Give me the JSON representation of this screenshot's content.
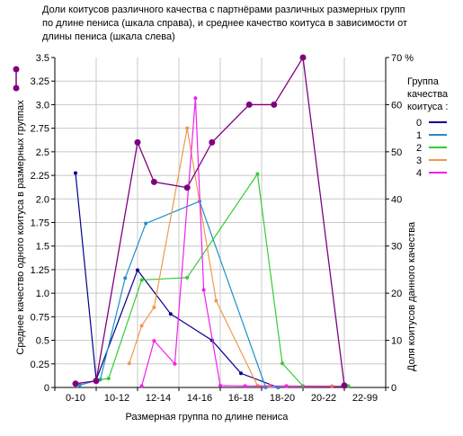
{
  "chart_data": {
    "type": "line",
    "title": "Доли коитусов различного качества с партнёрами различных размерных групп по длине пениса (шкала справа), и среднее качество коитуса в зависимости от длины пениса (шкала слева)",
    "title_lines": [
      "Доли коитусов различного качества с партнёрами различных размерных групп",
      "по длине пениса (шкала справа), и среднее качество коитуса в зависимости от",
      "длины пениса (шкала слева)"
    ],
    "xlabel": "Размерная группа  по длине пениса",
    "ylabel_left": "Среднее качество одного коитуса в размерных группах",
    "ylabel_right": "Доля коитусов данного качества",
    "categories": [
      "0-10",
      "10-12",
      "12-14",
      "14-16",
      "16-18",
      "18-20",
      "20-22",
      "22-99"
    ],
    "ylim_left": [
      0,
      3.5
    ],
    "yticks_left": [
      "0",
      "0.25",
      "0.5",
      "0.75",
      "1.0",
      "1.25",
      "1.5",
      "1.75",
      "2.0",
      "2.25",
      "2.5",
      "2.75",
      "3.0",
      "3.25",
      "3.5"
    ],
    "ylim_right": [
      0,
      70
    ],
    "yticks_right": [
      "0",
      "10",
      "20",
      "30",
      "40",
      "50",
      "60",
      "70 %"
    ],
    "legend": {
      "title_lines": [
        "Группа",
        "качества",
        "коитуса :"
      ],
      "position": "right"
    },
    "grid": true,
    "mean_series": {
      "axis": "left",
      "color": "#800080",
      "x": [
        0,
        0.5,
        1.5,
        1.9,
        2.7,
        3.3,
        4.2,
        4.8,
        5.5,
        6.5
      ],
      "y": [
        0.04,
        0.07,
        2.6,
        2.18,
        2.12,
        2.6,
        3.0,
        3.0,
        3.5,
        0.02
      ]
    },
    "series": [
      {
        "name": "0",
        "color": "#00008b",
        "axis": "right",
        "x": [
          0,
          0.5,
          1.5,
          2.3,
          3.3,
          4.0,
          4.9
        ],
        "y": [
          45.5,
          1.6,
          24.9,
          15.6,
          10.0,
          3.0,
          0.0
        ]
      },
      {
        "name": "1",
        "color": "#1e90c8",
        "axis": "right",
        "x": [
          0.1,
          0.6,
          1.2,
          1.7,
          3.0,
          4.6,
          4.9
        ],
        "y": [
          0.5,
          1.7,
          23.2,
          34.8,
          39.5,
          0.0,
          0.0
        ]
      },
      {
        "name": "2",
        "color": "#32cd32",
        "axis": "right",
        "x": [
          0.5,
          0.8,
          1.6,
          2.7,
          4.4,
          5.0,
          5.5,
          6.6
        ],
        "y": [
          1.6,
          1.9,
          22.8,
          23.3,
          45.3,
          5.1,
          0.3,
          0.3
        ]
      },
      {
        "name": "3",
        "color": "#ee9a4d",
        "axis": "right",
        "x": [
          1.3,
          1.6,
          1.9,
          2.7,
          3.4,
          4.4,
          4.7,
          5.1,
          6.2
        ],
        "y": [
          5.1,
          13.1,
          17.0,
          55.0,
          18.4,
          0.4,
          0.3,
          0.3,
          0.3
        ]
      },
      {
        "name": "4",
        "color": "#ee22ee",
        "axis": "right",
        "x": [
          1.6,
          1.9,
          2.4,
          2.9,
          3.1,
          3.5,
          4.1,
          5.1,
          6.5
        ],
        "y": [
          0.3,
          9.9,
          5.0,
          61.4,
          20.7,
          0.4,
          0.3,
          0.3,
          0.2
        ]
      }
    ]
  }
}
